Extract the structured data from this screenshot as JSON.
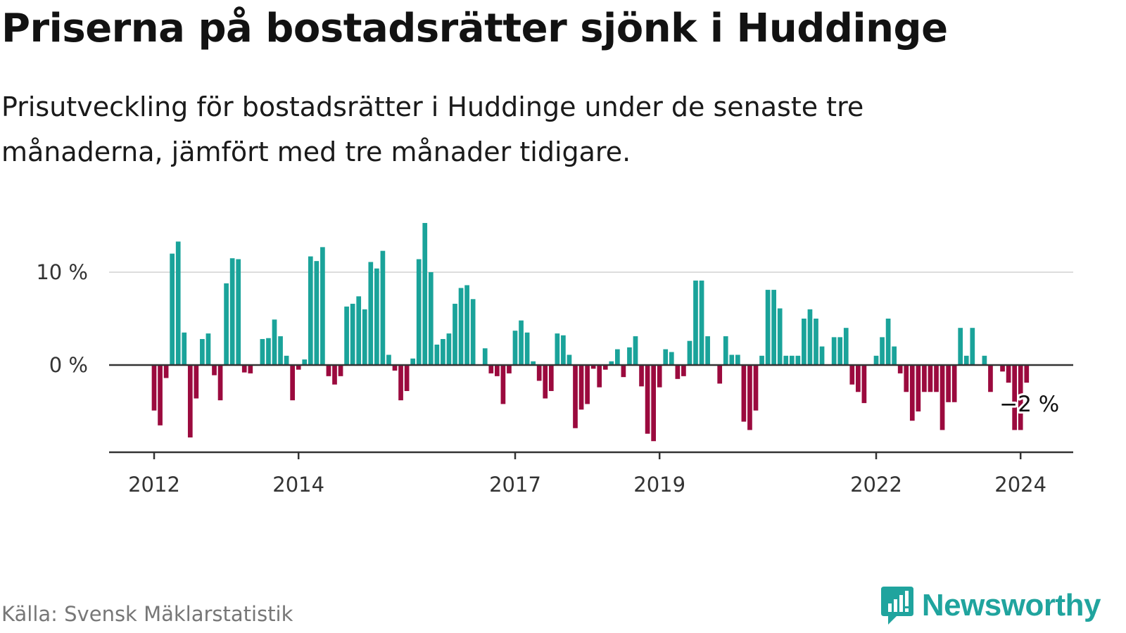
{
  "title": "Priserna på bostadsrätter sjönk i Huddinge",
  "subtitle": "Prisutveckling för bostadsrätter i Huddinge under de senaste tre månaderna, jämfört med tre månader tidigare.",
  "source": "Källa: Svensk Mäklarstatistik",
  "brand": "Newsworthy",
  "colors": {
    "positive": "#1aa39a",
    "negative": "#9b0a3e",
    "grid": "#dddddd",
    "axis": "#333333",
    "brand": "#20a49e"
  },
  "chart_data": {
    "type": "bar",
    "start": "2012-01",
    "unit": "%",
    "ylim": [
      -9.5,
      17
    ],
    "yticks": [
      {
        "value": 0,
        "label": "0 %"
      },
      {
        "value": 10,
        "label": "10 %"
      }
    ],
    "xticks": [
      {
        "index": 0,
        "label": "2012"
      },
      {
        "index": 24,
        "label": "2014"
      },
      {
        "index": 60,
        "label": "2017"
      },
      {
        "index": 84,
        "label": "2019"
      },
      {
        "index": 120,
        "label": "2022"
      },
      {
        "index": 144,
        "label": "2024"
      }
    ],
    "values": [
      -4.9,
      -6.5,
      -1.4,
      12.0,
      13.3,
      3.5,
      -7.8,
      -3.6,
      2.8,
      3.4,
      -1.1,
      -3.8,
      8.8,
      11.5,
      11.4,
      -0.8,
      -0.9,
      0,
      2.8,
      2.9,
      4.9,
      3.1,
      1.0,
      -3.8,
      -0.5,
      0.6,
      11.7,
      11.2,
      12.7,
      -1.2,
      -2.1,
      -1.2,
      6.3,
      6.6,
      7.4,
      6.0,
      11.1,
      10.4,
      12.3,
      1.1,
      -0.6,
      -3.8,
      -2.8,
      0.7,
      11.4,
      15.3,
      10.0,
      2.2,
      2.8,
      3.4,
      6.6,
      8.3,
      8.6,
      7.1,
      0,
      1.8,
      -0.9,
      -1.2,
      -4.2,
      -0.9,
      3.7,
      4.8,
      3.5,
      0.4,
      -1.7,
      -3.6,
      -2.8,
      3.4,
      3.2,
      1.1,
      -6.8,
      -4.8,
      -4.2,
      -0.4,
      -2.4,
      -0.5,
      0.4,
      1.7,
      -1.3,
      1.9,
      3.1,
      -2.3,
      -7.4,
      -8.2,
      -2.4,
      1.7,
      1.4,
      -1.5,
      -1.2,
      2.6,
      9.1,
      9.1,
      3.1,
      0,
      -2.0,
      3.1,
      1.1,
      1.1,
      -6.1,
      -7.0,
      -4.9,
      1.0,
      8.1,
      8.1,
      6.1,
      1.0,
      1.0,
      1.0,
      5.0,
      6.0,
      5.0,
      2.0,
      0,
      3.0,
      3.0,
      4.0,
      -2.1,
      -2.9,
      -4.1,
      0,
      1.0,
      3.0,
      5.0,
      2.0,
      -0.9,
      -2.9,
      -6.0,
      -5.0,
      -2.9,
      -2.9,
      -2.9,
      -7.0,
      -4.0,
      -4.0,
      4.0,
      1.0,
      4.0,
      0,
      1.0,
      -2.9,
      0,
      -0.7,
      -1.9,
      -7.0,
      -7.0,
      -1.9
    ],
    "annotation": {
      "text": "−2 %",
      "index": 145
    }
  }
}
